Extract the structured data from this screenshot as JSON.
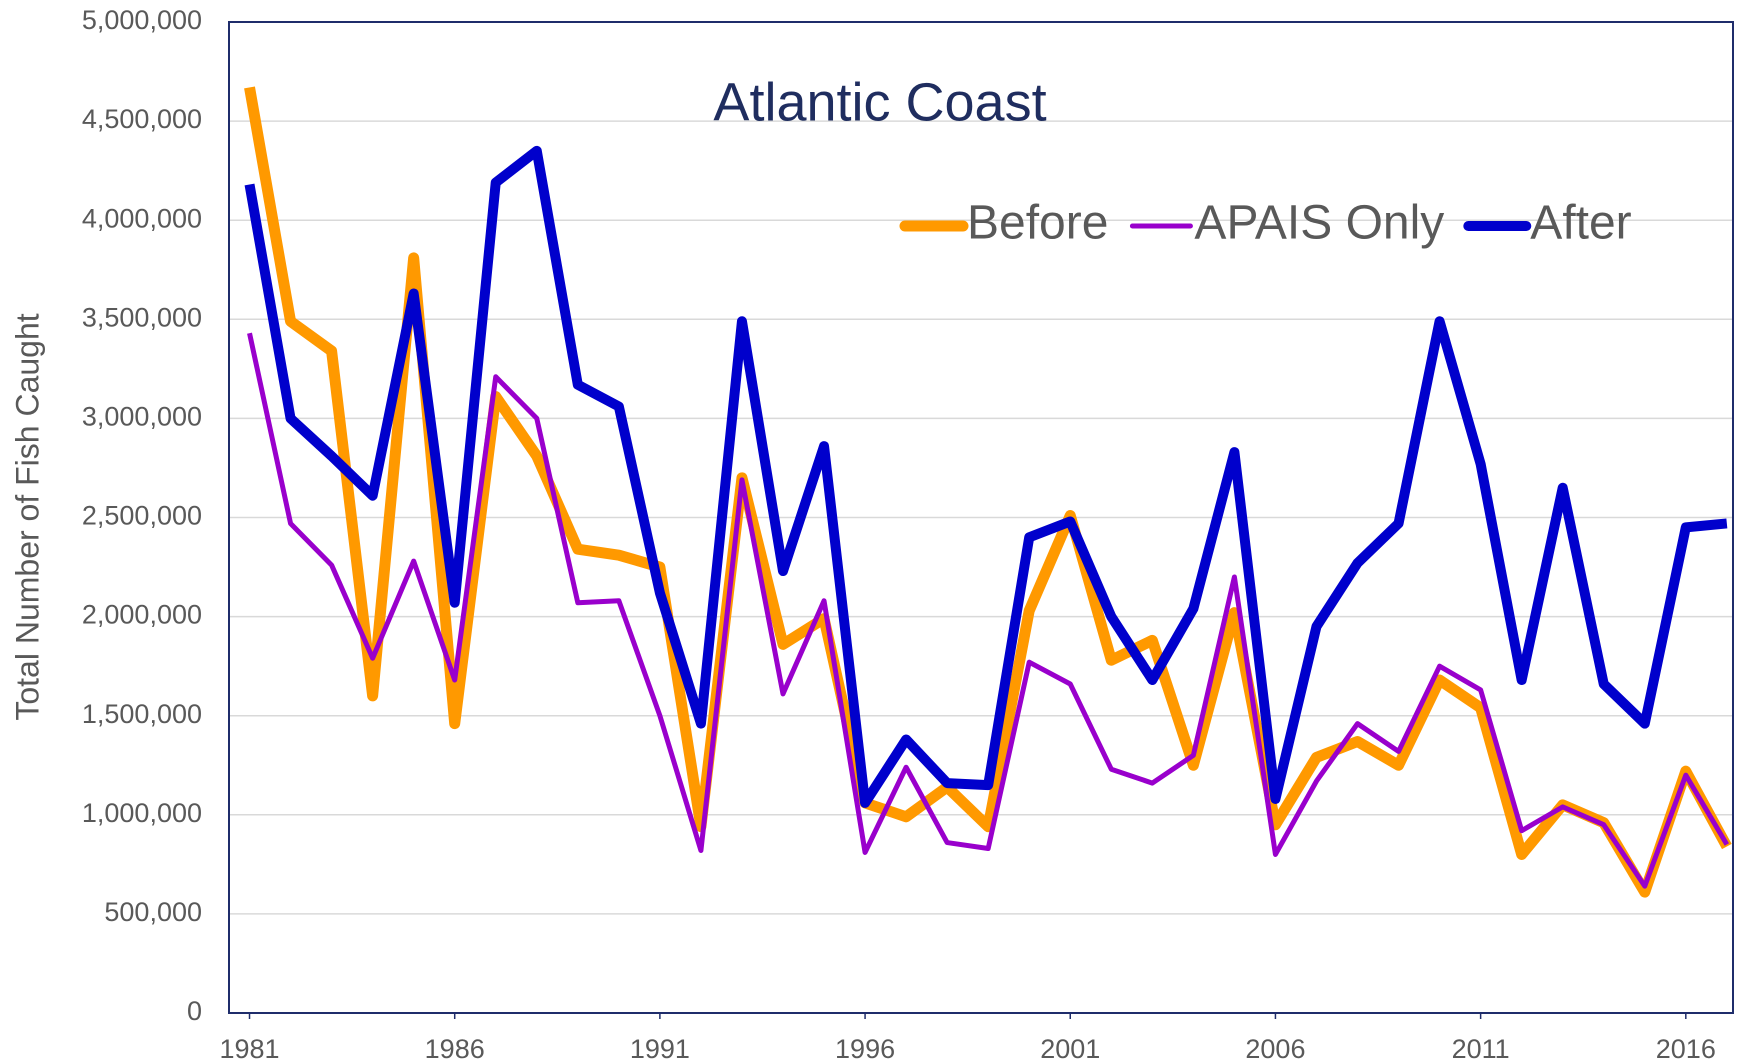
{
  "chart_data": {
    "type": "line",
    "title": "Atlantic Coast",
    "y_label": "Total Number of Fish Caught",
    "x": [
      1981,
      1982,
      1983,
      1984,
      1985,
      1986,
      1987,
      1988,
      1989,
      1990,
      1991,
      1992,
      1993,
      1994,
      1995,
      1996,
      1997,
      1998,
      1999,
      2000,
      2001,
      2002,
      2003,
      2004,
      2005,
      2006,
      2007,
      2008,
      2009,
      2010,
      2011,
      2012,
      2013,
      2014,
      2015,
      2016,
      2017
    ],
    "xlim": [
      1980.5,
      2017.15
    ],
    "xticks": [
      1981,
      1986,
      1991,
      1996,
      2001,
      2006,
      2011,
      2016
    ],
    "ylim": [
      0,
      5000000
    ],
    "yticks": [
      0,
      {
        "value": 500000,
        "label": "500,000"
      },
      {
        "value": 1000000,
        "label": "1,000,000"
      },
      {
        "value": 1500000,
        "label": "1,500,000"
      },
      {
        "value": 2000000,
        "label": "2,000,000"
      },
      {
        "value": 2500000,
        "label": "2,500,000"
      },
      {
        "value": 3000000,
        "label": "3,000,000"
      },
      {
        "value": 3500000,
        "label": "3,500,000"
      },
      {
        "value": 4000000,
        "label": "4,000,000"
      },
      {
        "value": 4500000,
        "label": "4,500,000"
      },
      {
        "value": 5000000,
        "label": "5,000,000"
      }
    ],
    "grid": true,
    "legend": "top-right",
    "series": [
      {
        "name": "Before",
        "color": "#ff9900",
        "values": [
          4670000,
          3490000,
          3340000,
          1600000,
          3810000,
          1460000,
          3110000,
          2810000,
          2340000,
          2310000,
          2250000,
          940000,
          2700000,
          1860000,
          1990000,
          1060000,
          990000,
          1140000,
          940000,
          2030000,
          2510000,
          1780000,
          1880000,
          1250000,
          2020000,
          950000,
          1290000,
          1370000,
          1250000,
          1680000,
          1540000,
          800000,
          1050000,
          960000,
          610000,
          1220000,
          840000
        ]
      },
      {
        "name": "APAIS Only",
        "color": "#9900cc",
        "values": [
          3430000,
          2470000,
          2260000,
          1790000,
          2280000,
          1680000,
          3210000,
          3000000,
          2070000,
          2080000,
          1500000,
          820000,
          2690000,
          1610000,
          2080000,
          810000,
          1240000,
          860000,
          830000,
          1770000,
          1660000,
          1230000,
          1160000,
          1300000,
          2200000,
          800000,
          1170000,
          1460000,
          1320000,
          1750000,
          1630000,
          920000,
          1040000,
          950000,
          640000,
          1200000,
          850000
        ]
      },
      {
        "name": "After",
        "color": "#0000cc",
        "values": [
          4180000,
          3000000,
          2810000,
          2610000,
          3630000,
          2070000,
          4190000,
          4350000,
          3170000,
          3060000,
          2120000,
          1460000,
          3490000,
          2230000,
          2860000,
          1060000,
          1380000,
          1160000,
          1150000,
          2400000,
          2480000,
          2000000,
          1680000,
          2040000,
          2830000,
          1080000,
          1950000,
          2270000,
          2470000,
          3490000,
          2770000,
          1680000,
          2650000,
          1660000,
          1460000,
          2450000,
          2470000
        ]
      }
    ]
  }
}
